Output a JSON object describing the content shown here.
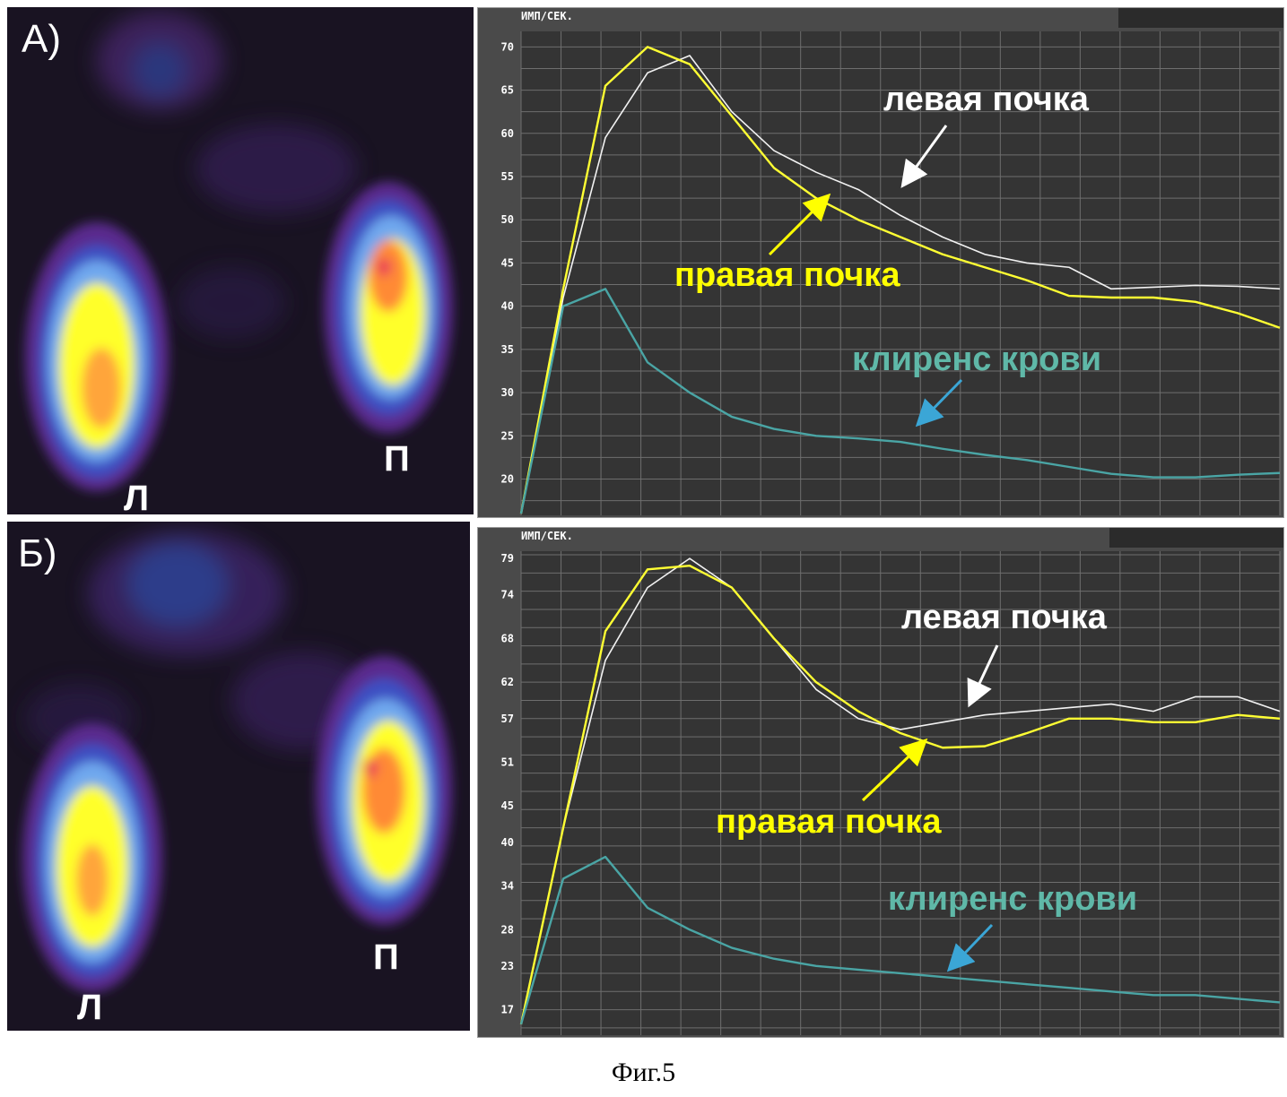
{
  "panels": [
    {
      "label": "А)",
      "left_kidney_label": "Л",
      "right_kidney_label": "П",
      "chart_data": {
        "type": "line",
        "ylabel": "ИМП/СЕК.",
        "yticks": [
          "70",
          "65",
          "60",
          "55",
          "50",
          "45",
          "40",
          "35",
          "30",
          "25",
          "20"
        ],
        "ylim": [
          15.8,
          71.8
        ],
        "xlim": [
          0,
          18
        ],
        "grid": true,
        "series": [
          {
            "name": "левая почка",
            "color": "#f2f2f2",
            "x": [
              0,
              1,
              2,
              3,
              4,
              5,
              6,
              7,
              8,
              9,
              10,
              11,
              12,
              13,
              14,
              15,
              16,
              17,
              18
            ],
            "values": [
              16,
              41,
              59.5,
              67,
              69,
              62.5,
              58,
              55.5,
              53.5,
              50.5,
              48,
              46,
              45,
              44.5,
              42,
              42.2,
              42.4,
              42.3,
              42
            ]
          },
          {
            "name": "правая почка",
            "color": "#ffff33",
            "x": [
              0,
              1,
              2,
              3,
              4,
              5,
              6,
              7,
              8,
              9,
              10,
              11,
              12,
              13,
              14,
              15,
              16,
              17,
              18
            ],
            "values": [
              16,
              42,
              65.5,
              70,
              68,
              62,
              56,
              52.5,
              50,
              48,
              46,
              44.5,
              43,
              41.2,
              41,
              41,
              40.5,
              39.2,
              37.5
            ]
          },
          {
            "name": "клиренс крови",
            "color": "#4aa5a5",
            "x": [
              0,
              1,
              2,
              3,
              4,
              5,
              6,
              7,
              8,
              9,
              10,
              11,
              12,
              13,
              14,
              15,
              16,
              17,
              18
            ],
            "values": [
              16,
              40,
              42,
              33.5,
              30,
              27.2,
              25.8,
              25,
              24.7,
              24.3,
              23.5,
              22.8,
              22.2,
              21.4,
              20.6,
              20.2,
              20.2,
              20.5,
              20.7
            ]
          }
        ]
      },
      "annotations": {
        "left": "левая почка",
        "right": "правая почка",
        "blood": "клиренс крови"
      }
    },
    {
      "label": "Б)",
      "left_kidney_label": "Л",
      "right_kidney_label": "П",
      "chart_data": {
        "type": "line",
        "ylabel": "ИМП/СЕК.",
        "yticks": [
          "79",
          "74",
          "68",
          "62",
          "57",
          "51",
          "45",
          "40",
          "34",
          "28",
          "23",
          "17"
        ],
        "ylim": [
          13.5,
          80
        ],
        "xlim": [
          0,
          18
        ],
        "grid": true,
        "series": [
          {
            "name": "левая почка",
            "color": "#f2f2f2",
            "x": [
              0,
              1,
              2,
              3,
              4,
              5,
              6,
              7,
              8,
              9,
              10,
              11,
              12,
              13,
              14,
              15,
              16,
              17,
              18
            ],
            "values": [
              15,
              42,
              65,
              75,
              79,
              75,
              68,
              61,
              57,
              55.5,
              56.5,
              57.5,
              58,
              58.5,
              59,
              58,
              60,
              60,
              58
            ]
          },
          {
            "name": "правая почка",
            "color": "#ffff33",
            "x": [
              0,
              1,
              2,
              3,
              4,
              5,
              6,
              7,
              8,
              9,
              10,
              11,
              12,
              13,
              14,
              15,
              16,
              17,
              18
            ],
            "values": [
              15,
              42,
              69,
              77.5,
              78,
              75,
              68,
              62,
              58,
              55,
              53,
              53.2,
              55,
              57,
              57,
              56.5,
              56.5,
              57.5,
              57
            ]
          },
          {
            "name": "клиренс крови",
            "color": "#4aa5a5",
            "x": [
              0,
              1,
              2,
              3,
              4,
              5,
              6,
              7,
              8,
              9,
              10,
              11,
              12,
              13,
              14,
              15,
              16,
              17,
              18
            ],
            "values": [
              15,
              35,
              38,
              31,
              28,
              25.5,
              24,
              23,
              22.5,
              22,
              21.5,
              21,
              20.5,
              20,
              19.5,
              19,
              19,
              18.5,
              18
            ]
          }
        ]
      },
      "annotations": {
        "left": "левая почка",
        "right": "правая почка",
        "blood": "клиренс крови"
      }
    }
  ],
  "colors": {
    "left_kidney": "#ffffff",
    "right_kidney": "#ffff00",
    "blood_clearance": "#5fb8a8",
    "plot_bg": "#343434",
    "grid": "#6e6e6e"
  },
  "caption": "Фиг.5"
}
